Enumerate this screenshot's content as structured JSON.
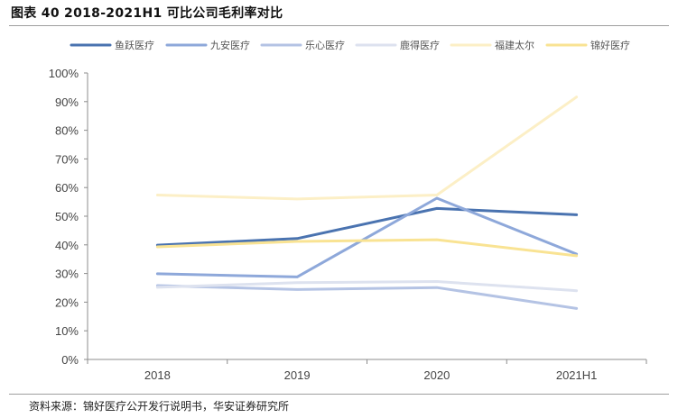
{
  "header": {
    "title": "图表 40 2018-2021H1 可比公司毛利率对比"
  },
  "footer": {
    "source": "资料来源：锦好医疗公开发行说明书，华安证券研究所"
  },
  "chart_data": {
    "type": "line",
    "title": "",
    "xlabel": "",
    "ylabel": "",
    "categories": [
      "2018",
      "2019",
      "2020",
      "2021H1"
    ],
    "ylim": [
      0,
      100
    ],
    "y_ticks": [
      "0%",
      "10%",
      "20%",
      "30%",
      "40%",
      "50%",
      "60%",
      "70%",
      "80%",
      "90%",
      "100%"
    ],
    "y_unit": "%",
    "grid": false,
    "legend_position": "top",
    "series": [
      {
        "name": "鱼跃医疗",
        "color": "#4a73b0",
        "values": [
          39.9,
          42.2,
          52.7,
          50.5
        ]
      },
      {
        "name": "九安医疗",
        "color": "#8ea8da",
        "values": [
          29.9,
          28.8,
          56.3,
          36.8
        ]
      },
      {
        "name": "乐心医疗",
        "color": "#b4c3e4",
        "values": [
          25.8,
          24.4,
          25.1,
          17.8
        ]
      },
      {
        "name": "鹿得医疗",
        "color": "#dde2ef",
        "values": [
          25.2,
          26.8,
          27.2,
          24.0
        ]
      },
      {
        "name": "福建太尔",
        "color": "#fcefc6",
        "values": [
          57.4,
          56.0,
          57.4,
          91.6
        ]
      },
      {
        "name": "锦好医疗",
        "color": "#f9e393",
        "values": [
          39.3,
          41.2,
          41.8,
          36.2
        ]
      }
    ]
  }
}
